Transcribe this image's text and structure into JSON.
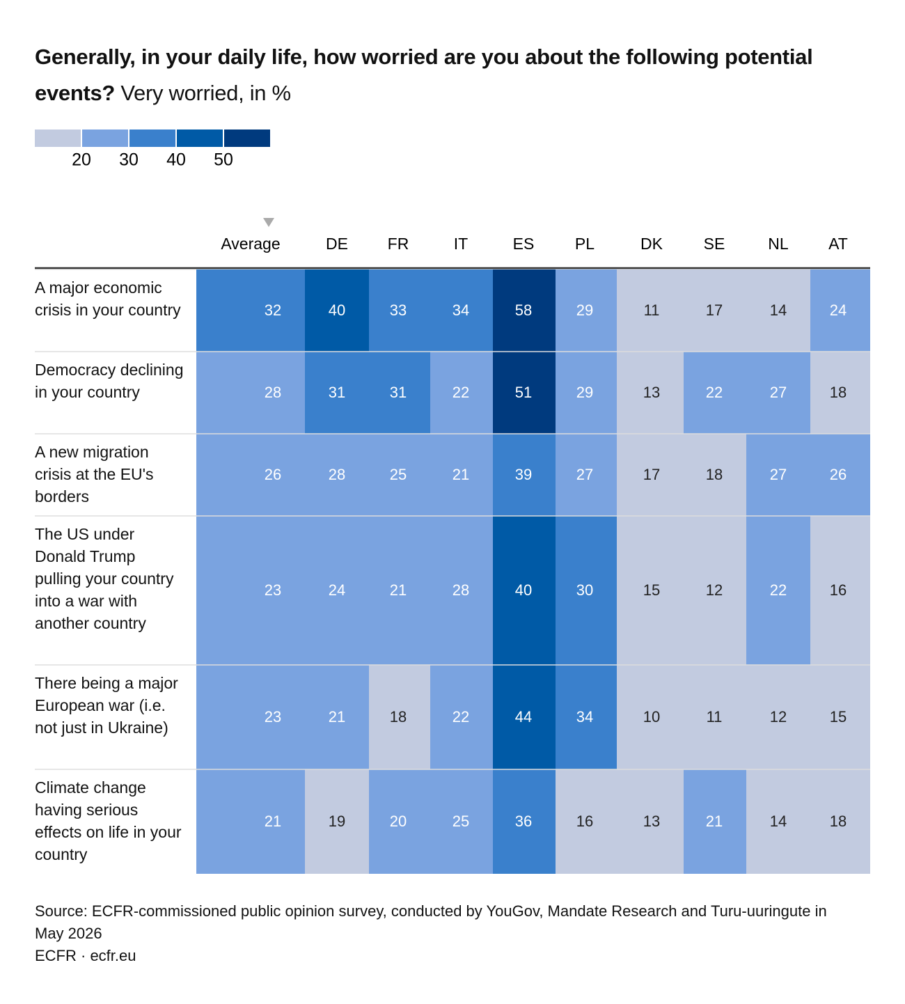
{
  "chart_data": {
    "type": "heatmap",
    "title": "Generally, in your daily life, how worried are you about the following potential events?",
    "subtitle": "Very worried, in %",
    "color_scale": {
      "thresholds": [
        20,
        30,
        40,
        50
      ],
      "colors": [
        "#c2cbe0",
        "#7aa3e0",
        "#3a80cc",
        "#005aa6",
        "#003a7e"
      ]
    },
    "columns": [
      "Average",
      "DE",
      "FR",
      "IT",
      "ES",
      "PL",
      "DK",
      "SE",
      "NL",
      "AT"
    ],
    "rows": [
      {
        "label": "A major economic crisis in your country",
        "values": [
          32,
          40,
          33,
          34,
          58,
          29,
          11,
          17,
          14,
          24
        ]
      },
      {
        "label": "Democracy declining in your country",
        "values": [
          28,
          31,
          31,
          22,
          51,
          29,
          13,
          22,
          27,
          18
        ]
      },
      {
        "label": "A new migration crisis at the EU's borders",
        "values": [
          26,
          28,
          25,
          21,
          39,
          27,
          17,
          18,
          27,
          26
        ]
      },
      {
        "label": "The US under Donald Trump pulling your country into a war with another country",
        "values": [
          23,
          24,
          21,
          28,
          40,
          30,
          15,
          12,
          22,
          16
        ]
      },
      {
        "label": "There being a major European war (i.e. not just in Ukraine)",
        "values": [
          23,
          21,
          18,
          22,
          44,
          34,
          10,
          11,
          12,
          15
        ]
      },
      {
        "label": "Climate change having serious effects on life in your country",
        "values": [
          21,
          19,
          20,
          25,
          36,
          16,
          13,
          21,
          14,
          18
        ]
      }
    ],
    "source": "Source: ECFR-commissioned public opinion survey, conducted by YouGov, Mandate Research and Turu-uuringute in May 2026",
    "credit": "ECFR · ecfr.eu"
  }
}
